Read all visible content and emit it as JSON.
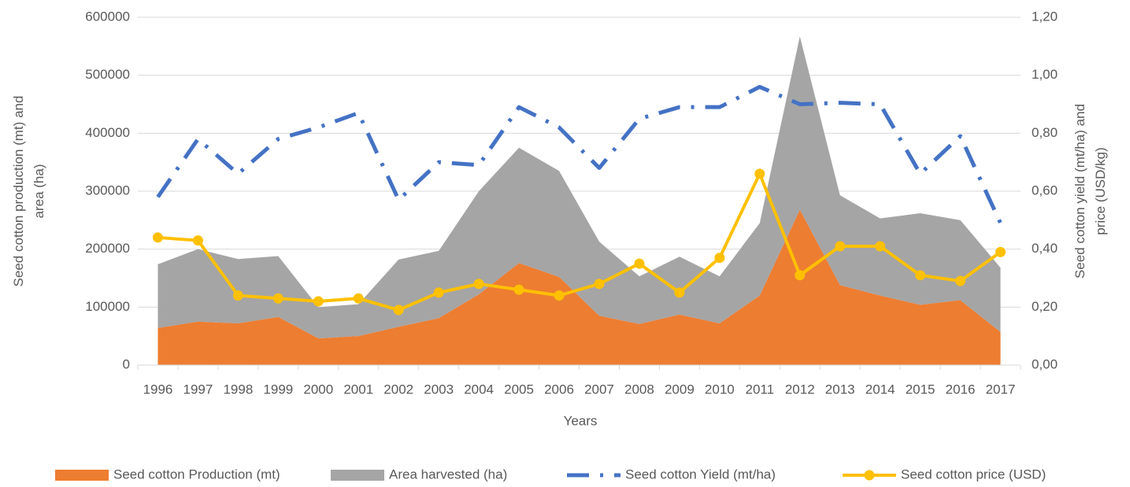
{
  "chart_data": {
    "type": "combo",
    "xlabel": "Years",
    "ylabel": [
      "Seed cotton production (mt) and",
      "area (ha)"
    ],
    "y2label": [
      "Seed cotton yield (mt/ha) and",
      "price (USD/kg)"
    ],
    "categories": [
      "1996",
      "1997",
      "1998",
      "1999",
      "2000",
      "2001",
      "2002",
      "2003",
      "2004",
      "2005",
      "2006",
      "2007",
      "2008",
      "2009",
      "2010",
      "2011",
      "2012",
      "2013",
      "2014",
      "2015",
      "2016",
      "2017"
    ],
    "ylim": [
      0,
      600000
    ],
    "yticks": [
      0,
      100000,
      200000,
      300000,
      400000,
      500000,
      600000
    ],
    "y2lim": [
      0,
      1.2
    ],
    "y2ticks": [
      {
        "value": 0,
        "label": "0,00"
      },
      {
        "value": 0.2,
        "label": "0,20"
      },
      {
        "value": 0.4,
        "label": "0,40"
      },
      {
        "value": 0.6,
        "label": "0,60"
      },
      {
        "value": 0.8,
        "label": "0,80"
      },
      {
        "value": 1.0,
        "label": "1,00"
      },
      {
        "value": 1.2,
        "label": "1,20"
      }
    ],
    "stacked": true,
    "legend": "bottom",
    "series": [
      {
        "name": "Seed cotton Production (mt)",
        "type": "area",
        "color": "#ED7D31",
        "values": [
          64000,
          75000,
          72000,
          83000,
          46000,
          50000,
          66000,
          81000,
          122000,
          176000,
          152000,
          85000,
          71000,
          87000,
          72000,
          120000,
          268000,
          138000,
          120000,
          104000,
          112000,
          57000
        ]
      },
      {
        "name": "Area harvested (ha)",
        "type": "area",
        "color": "#A5A5A5",
        "values": [
          110000,
          125000,
          111000,
          105000,
          54000,
          55000,
          116000,
          116000,
          178000,
          199000,
          183000,
          128000,
          82000,
          100000,
          81000,
          125000,
          299000,
          155000,
          133000,
          158000,
          138000,
          111000
        ]
      },
      {
        "name": "Seed cotton Yield (mt/ha)",
        "type": "line",
        "style": "dash-dot",
        "axis": "y2",
        "color": "#4472C4",
        "values": [
          0.58,
          0.78,
          0.66,
          0.78,
          0.82,
          0.87,
          0.57,
          0.7,
          0.69,
          0.89,
          0.82,
          0.68,
          0.85,
          0.89,
          0.89,
          0.96,
          0.9,
          0.905,
          0.9,
          0.66,
          0.79,
          0.49
        ]
      },
      {
        "name": "Seed cotton price (USD)",
        "type": "line",
        "style": "marker",
        "axis": "y2",
        "color": "#FFC000",
        "values": [
          0.44,
          0.43,
          0.24,
          0.23,
          0.22,
          0.23,
          0.19,
          0.25,
          0.28,
          0.26,
          0.24,
          0.28,
          0.35,
          0.25,
          0.37,
          0.66,
          0.31,
          0.41,
          0.41,
          0.31,
          0.29,
          0.39
        ]
      }
    ]
  }
}
